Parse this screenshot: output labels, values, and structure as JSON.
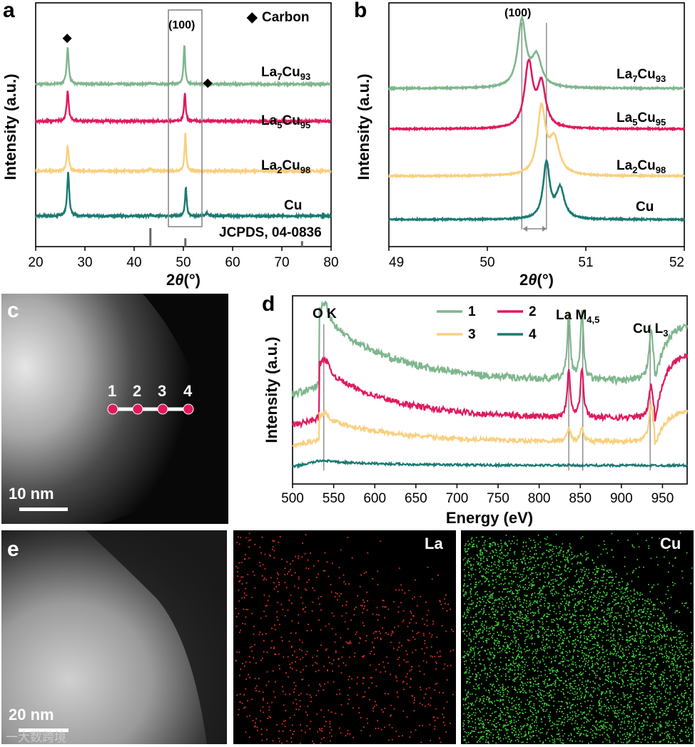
{
  "panels": {
    "a": "a",
    "b": "b",
    "c": "c",
    "d": "d",
    "e": "e"
  },
  "colors": {
    "La7Cu93": "#7fb68d",
    "La5Cu95": "#e0195f",
    "La2Cu98": "#f9cf7e",
    "Cu": "#1a7a72"
  },
  "chart_data": [
    {
      "id": "a",
      "type": "line",
      "xlabel_prefix": "2",
      "xlabel_theta": "θ",
      "xlabel_unit": "(°)",
      "ylabel": "Intensity (a.u.)",
      "xlim": [
        20,
        80
      ],
      "xticks": [
        "20",
        "30",
        "40",
        "50",
        "60",
        "70",
        "80"
      ],
      "legend_marker": "◆",
      "legend_text": "Carbon",
      "box_label": "(100)",
      "reference_label": "JCPDS, 04-0836",
      "reference_peaks": [
        43.3,
        50.4,
        74.1
      ],
      "reference_heights": [
        1.0,
        0.45,
        0.3
      ],
      "series": [
        {
          "key": "La7Cu93",
          "base": "La",
          "sub1": "7",
          "mid": "Cu",
          "sub2": "93",
          "peaks": [
            [
              26.5,
              3.2,
              0.25
            ],
            [
              43.3,
              0.12,
              0.3
            ],
            [
              50.2,
              3.4,
              0.2
            ],
            [
              54.6,
              0.15,
              0.3
            ]
          ]
        },
        {
          "key": "La5Cu95",
          "base": "La",
          "sub1": "5",
          "mid": "Cu",
          "sub2": "95",
          "peaks": [
            [
              26.5,
              2.6,
              0.25
            ],
            [
              50.3,
              2.5,
              0.2
            ]
          ]
        },
        {
          "key": "La2Cu98",
          "base": "La",
          "sub1": "2",
          "mid": "Cu",
          "sub2": "98",
          "peaks": [
            [
              26.5,
              2.2,
              0.25
            ],
            [
              43.3,
              0.2,
              0.25
            ],
            [
              50.4,
              3.3,
              0.2
            ]
          ]
        },
        {
          "key": "Cu",
          "base": "Cu",
          "sub1": "",
          "mid": "",
          "sub2": "",
          "peaks": [
            [
              26.6,
              3.8,
              0.25
            ],
            [
              43.3,
              0.12,
              0.3
            ],
            [
              50.5,
              2.5,
              0.2
            ],
            [
              54.8,
              0.25,
              0.3
            ]
          ]
        }
      ]
    },
    {
      "id": "b",
      "type": "line",
      "xlabel_prefix": "2",
      "xlabel_theta": "θ",
      "xlabel_unit": "(°)",
      "ylabel": "Intensity (a.u.)",
      "xlim": [
        49,
        52
      ],
      "xticks": [
        "49",
        "50",
        "51",
        "52"
      ],
      "top_label": "(100)",
      "ref_lines": [
        50.35,
        50.6
      ],
      "series": [
        {
          "key": "La7Cu93",
          "base": "La",
          "sub1": "7",
          "mid": "Cu",
          "sub2": "93",
          "peaks": [
            [
              50.35,
              3.1,
              0.05
            ],
            [
              50.5,
              1.4,
              0.06
            ]
          ]
        },
        {
          "key": "La5Cu95",
          "base": "La",
          "sub1": "5",
          "mid": "Cu",
          "sub2": "95",
          "peaks": [
            [
              50.42,
              3.0,
              0.05
            ],
            [
              50.55,
              2.0,
              0.05
            ]
          ]
        },
        {
          "key": "La2Cu98",
          "base": "La",
          "sub1": "2",
          "mid": "Cu",
          "sub2": "98",
          "peaks": [
            [
              50.55,
              3.1,
              0.05
            ],
            [
              50.68,
              1.6,
              0.06
            ]
          ]
        },
        {
          "key": "Cu",
          "base": "Cu",
          "sub1": "",
          "mid": "",
          "sub2": "",
          "peaks": [
            [
              50.6,
              2.6,
              0.04
            ],
            [
              50.74,
              1.4,
              0.05
            ]
          ]
        }
      ]
    },
    {
      "id": "d",
      "type": "line",
      "xlabel": "Energy (eV)",
      "ylabel": "Intensity (a.u.)",
      "xlim": [
        500,
        980
      ],
      "xticks": [
        "500",
        "550",
        "600",
        "650",
        "700",
        "750",
        "800",
        "850",
        "900",
        "950"
      ],
      "annotations": {
        "ok": "O K",
        "la_main": "La M",
        "la_sub": "4,5",
        "cu_main": "Cu L",
        "cu_sub": "3"
      },
      "ref_lines": [
        538,
        836,
        853,
        935
      ],
      "series": [
        {
          "name": "1",
          "key": "La7Cu93"
        },
        {
          "name": "2",
          "key": "La5Cu95"
        },
        {
          "name": "3",
          "key": "La2Cu98"
        },
        {
          "name": "4",
          "key": "Cu"
        }
      ]
    }
  ],
  "images": {
    "c": {
      "scale": "10 nm",
      "points": [
        "1",
        "2",
        "3",
        "4"
      ]
    },
    "e": {
      "scale": "20 nm",
      "map_la": "La",
      "map_cu": "Cu"
    }
  },
  "watermark": "一大数跨境"
}
